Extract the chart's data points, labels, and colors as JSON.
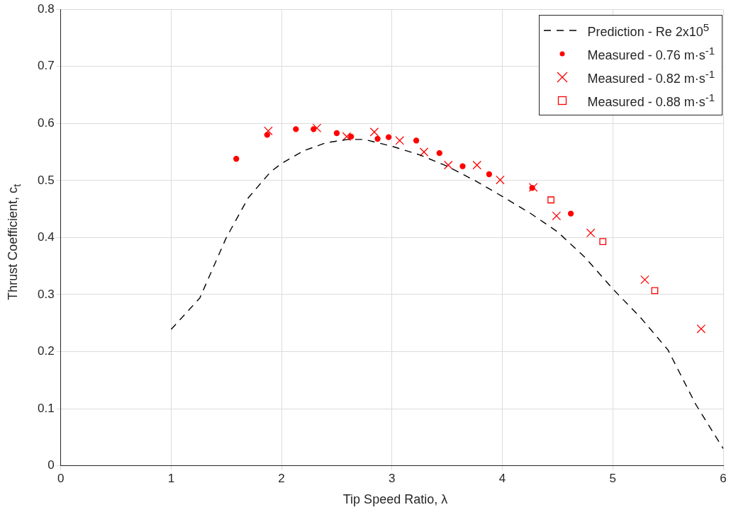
{
  "chart_data": {
    "type": "scatter",
    "xlabel": "Tip Speed Ratio, λ",
    "ylabel": "Thrust Coefficient, c$_{t}$",
    "xlim": [
      0,
      6
    ],
    "xticks": [
      0,
      1,
      2,
      3,
      4,
      5,
      6
    ],
    "ylim": [
      0,
      0.8
    ],
    "yticks": [
      0,
      0.1,
      0.2,
      0.3,
      0.4,
      0.5,
      0.6,
      0.7,
      0.8
    ],
    "grid": true,
    "legend": "top right",
    "series": [
      {
        "name": "Prediction - Re 2x10$^{5}$",
        "type": "line",
        "line_style": "dashed",
        "marker": "none",
        "color": "#000000",
        "x": [
          1.0,
          1.26,
          1.5,
          1.7,
          1.9,
          2.0,
          2.2,
          2.4,
          2.6,
          2.75,
          3.0,
          3.25,
          3.5,
          3.75,
          4.0,
          4.25,
          4.5,
          4.75,
          5.0,
          5.25,
          5.5,
          5.75,
          6.0
        ],
        "values": [
          0.239,
          0.294,
          0.4,
          0.47,
          0.515,
          0.53,
          0.552,
          0.566,
          0.572,
          0.572,
          0.56,
          0.545,
          0.525,
          0.5,
          0.472,
          0.443,
          0.41,
          0.365,
          0.31,
          0.26,
          0.203,
          0.108,
          0.03
        ]
      },
      {
        "name": "Measured - 0.76 m·s$^{-1}$",
        "type": "scatter",
        "marker": "circle",
        "color": "#ff0000",
        "x": [
          1.59,
          1.87,
          2.13,
          2.29,
          2.5,
          2.63,
          2.87,
          2.97,
          3.22,
          3.43,
          3.64,
          3.88,
          4.27,
          4.62
        ],
        "values": [
          0.538,
          0.58,
          0.59,
          0.59,
          0.583,
          0.577,
          0.573,
          0.576,
          0.57,
          0.548,
          0.525,
          0.511,
          0.487,
          0.442
        ]
      },
      {
        "name": "Measured - 0.82 m·s$^{-1}$",
        "type": "scatter",
        "marker": "cross",
        "color": "#ff0000",
        "x": [
          1.88,
          2.32,
          2.59,
          2.84,
          3.07,
          3.29,
          3.51,
          3.77,
          3.98,
          4.28,
          4.49,
          4.8,
          5.29,
          5.8
        ],
        "values": [
          0.587,
          0.592,
          0.577,
          0.585,
          0.57,
          0.55,
          0.527,
          0.527,
          0.501,
          0.488,
          0.438,
          0.408,
          0.326,
          0.24
        ]
      },
      {
        "name": "Measured - 0.88 m·s$^{-1}$",
        "type": "scatter",
        "marker": "square",
        "color": "#ff0000",
        "x": [
          4.44,
          4.91,
          5.38
        ],
        "values": [
          0.466,
          0.393,
          0.307
        ]
      }
    ]
  }
}
